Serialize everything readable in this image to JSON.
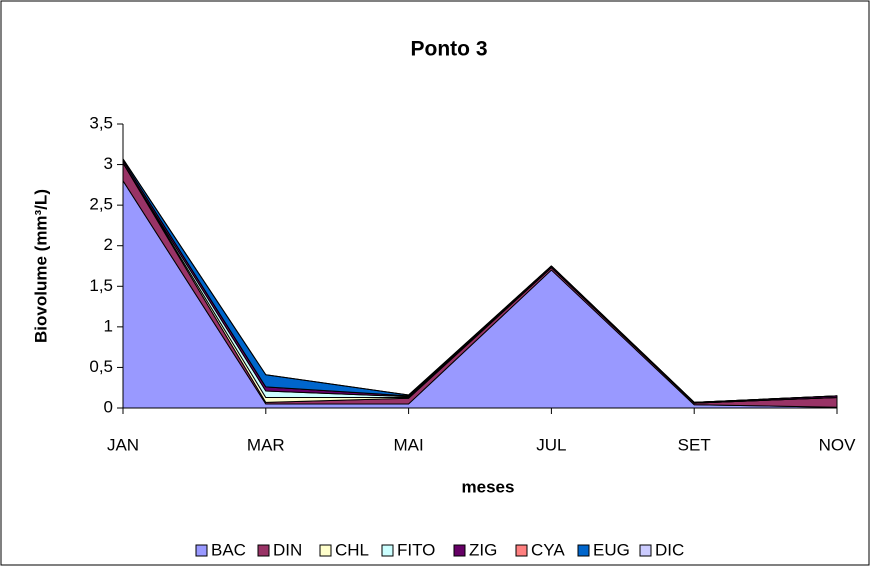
{
  "chart_data": {
    "type": "stacked-area",
    "title": "Ponto 3",
    "x_label": "meses",
    "y_label": "Biovolume (mm³/L)",
    "categories": [
      "JAN",
      "MAR",
      "MAI",
      "JUL",
      "SET",
      "NOV"
    ],
    "series": [
      {
        "name": "BAC",
        "color": "#9999ff",
        "values": [
          2.8,
          0.05,
          0.05,
          1.7,
          0.04,
          0.01
        ]
      },
      {
        "name": "DIN",
        "color": "#993366",
        "values": [
          0.22,
          0.02,
          0.07,
          0.03,
          0.02,
          0.12
        ]
      },
      {
        "name": "CHL",
        "color": "#ffffcc",
        "values": [
          0,
          0.06,
          0.01,
          0,
          0,
          0
        ]
      },
      {
        "name": "FITO",
        "color": "#ccffff",
        "values": [
          0,
          0.08,
          0.01,
          0,
          0,
          0
        ]
      },
      {
        "name": "ZIG",
        "color": "#660066",
        "values": [
          0.03,
          0.05,
          0.01,
          0.02,
          0.01,
          0.02
        ]
      },
      {
        "name": "CYA",
        "color": "#ff8080",
        "values": [
          0,
          0,
          0,
          0,
          0,
          0
        ]
      },
      {
        "name": "EUG",
        "color": "#0066cc",
        "values": [
          0.02,
          0.15,
          0.01,
          0,
          0,
          0
        ]
      },
      {
        "name": "DIC",
        "color": "#ccccff",
        "values": [
          0,
          0,
          0,
          0,
          0,
          0
        ]
      }
    ],
    "ylim": [
      0,
      3.5
    ],
    "yticks": [
      0,
      {
        "value": 0.5,
        "label": "0,5"
      },
      1,
      {
        "value": 1.5,
        "label": "1,5"
      },
      2,
      {
        "value": 2.5,
        "label": "2,5"
      },
      3,
      {
        "value": 3.5,
        "label": "3,5"
      }
    ],
    "legend": "bottom"
  }
}
